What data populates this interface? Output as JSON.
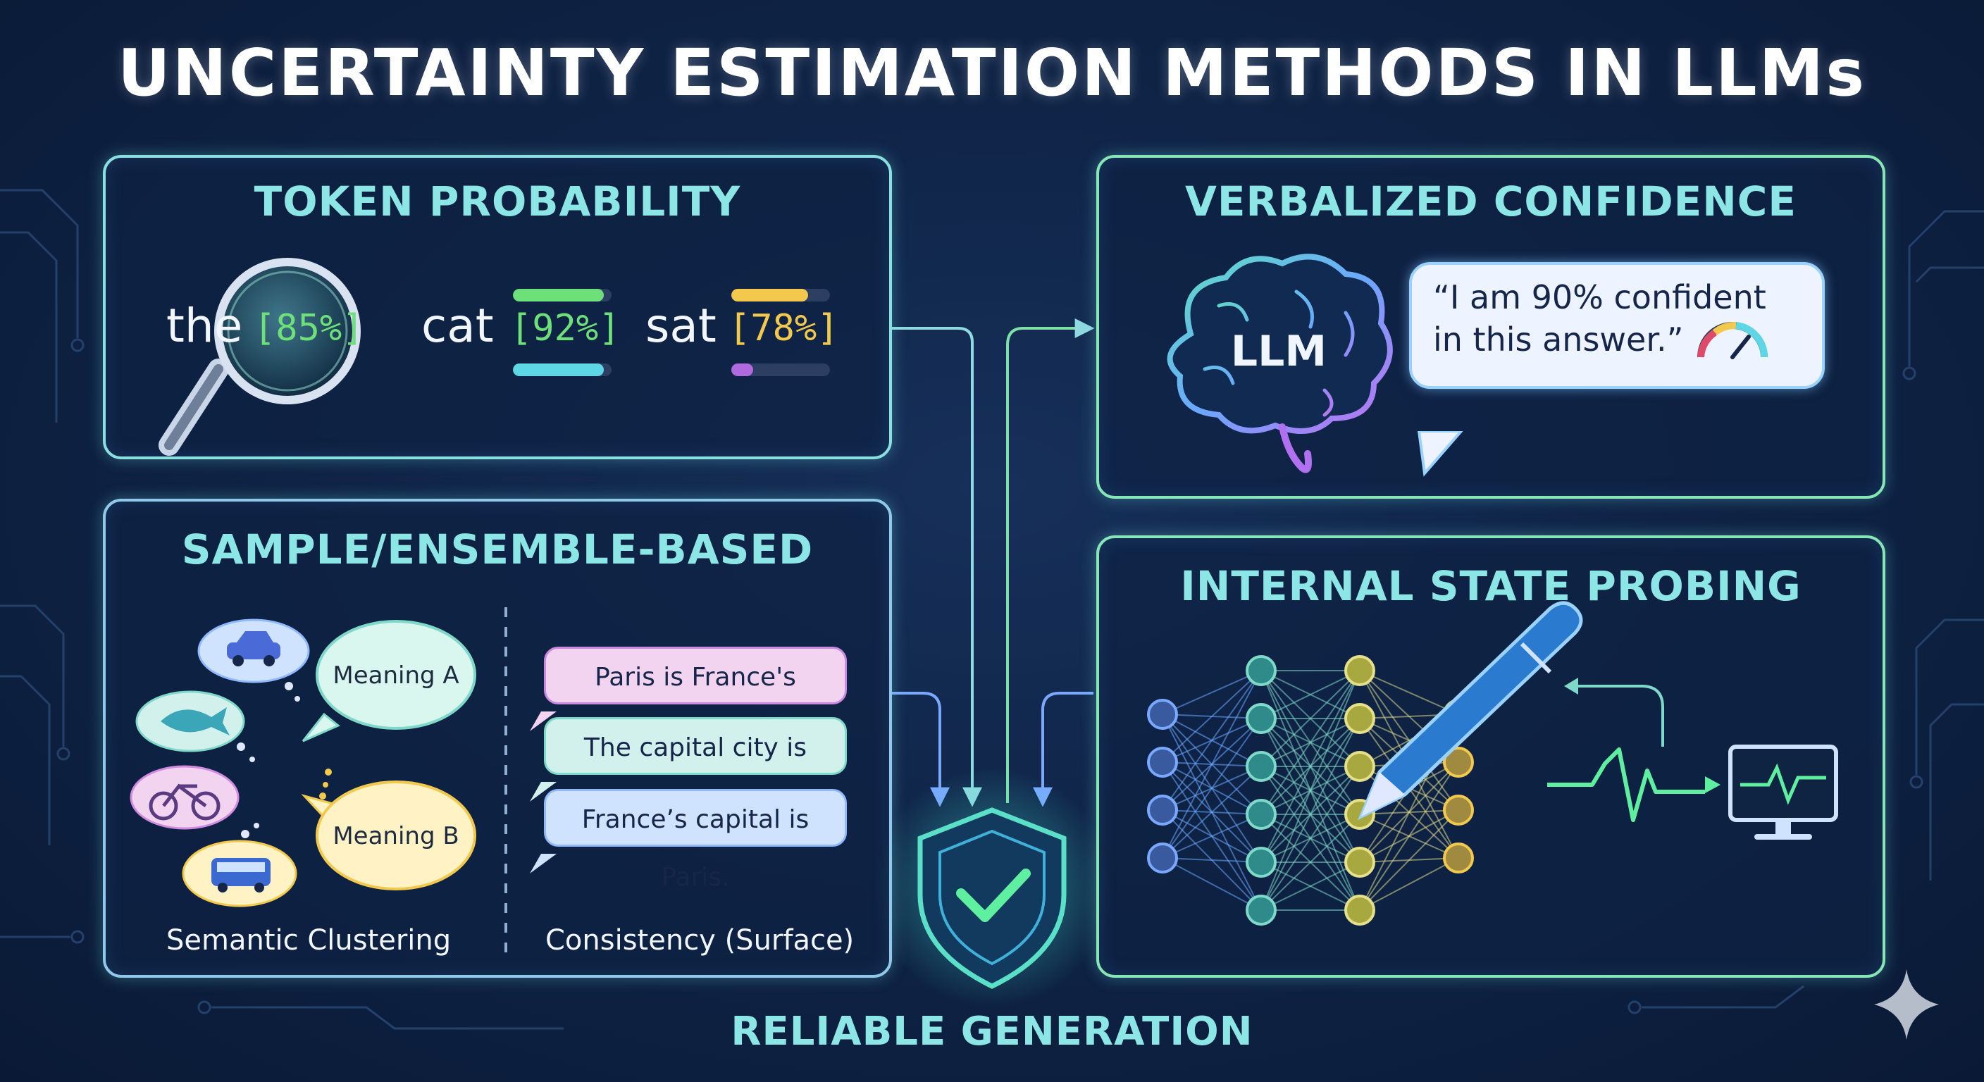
{
  "title": "UNCERTAINTY ESTIMATION METHODS IN LLMs",
  "token_probability": {
    "title": "TOKEN PROBABILITY",
    "tokens": [
      {
        "word": "the",
        "prob": "[85%]",
        "value": 0.85
      },
      {
        "word": "cat",
        "prob": "[92%]",
        "value": 0.92
      },
      {
        "word": "sat",
        "prob": "[78%]",
        "value": 0.78
      }
    ]
  },
  "verbalized_confidence": {
    "title": "VERBALIZED CONFIDENCE",
    "brain_label": "LLM",
    "quote_line1": "“I am 90% confident",
    "quote_line2": "in this answer.”"
  },
  "sample_ensemble": {
    "title": "SAMPLE/ENSEMBLE-BASED",
    "meanings": [
      "Meaning A",
      "Meaning B"
    ],
    "sentences": [
      "Paris is France's capital.",
      "The capital city is Paris.",
      "France’s capital is Paris."
    ],
    "caption_left": "Semantic Clustering",
    "caption_right": "Consistency (Surface)"
  },
  "internal_state": {
    "title": "INTERNAL STATE PROBING"
  },
  "footer": "RELIABLE GENERATION",
  "colors": {
    "green": "#6ee07a",
    "cyan": "#5fd6e6",
    "yellow": "#f2c94c",
    "purple": "#b06ae0",
    "accent": "#8de6e6"
  },
  "icons": [
    "magnifier-icon",
    "brain-icon",
    "gauge-icon",
    "car-icon",
    "fish-icon",
    "bicycle-icon",
    "bus-icon",
    "probe-pen-icon",
    "monitor-icon",
    "shield-check-icon",
    "sparkle-icon"
  ]
}
